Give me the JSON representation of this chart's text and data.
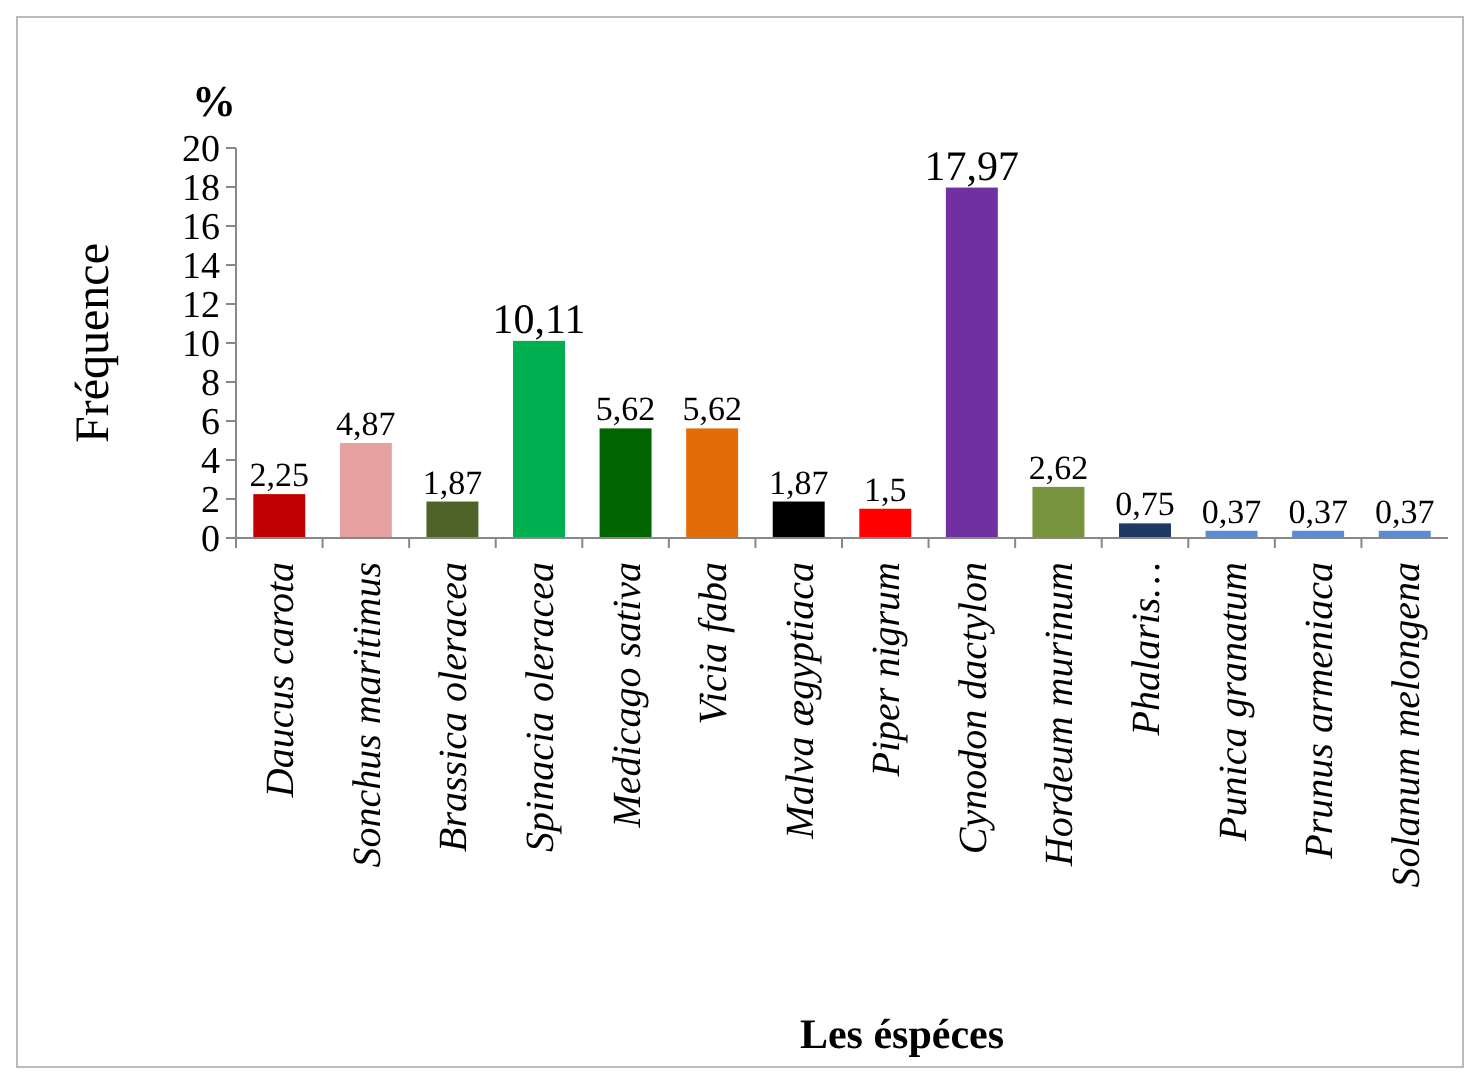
{
  "chart_data": {
    "type": "bar",
    "xlabel": "Les éspéces",
    "ylabel": "Fréquence",
    "annotations": [
      "%"
    ],
    "categories": [
      "Daucus carota",
      "Sonchus maritimus",
      "Brassica oleracea",
      "Spinacia oleracea",
      "Medicago sativa",
      "Vicia faba",
      "Malva ægyptiaca",
      "Piper nigrum",
      "Cynodon dactylon",
      "Hordeum murinum",
      "Phalaris…",
      "Punica granatum",
      "Prunus armeniaca",
      "Solanum melongena"
    ],
    "values": [
      2.25,
      4.87,
      1.87,
      10.11,
      5.62,
      5.62,
      1.87,
      1.5,
      17.97,
      2.62,
      0.75,
      0.37,
      0.37,
      0.37
    ],
    "value_labels": [
      "2,25",
      "4,87",
      "1,87",
      "10,11",
      "5,62",
      "5,62",
      "1,87",
      "1,5",
      "17,97",
      "2,62",
      "0,75",
      "0,37",
      "0,37",
      "0,37"
    ],
    "colors": [
      "#c00000",
      "#e6a0a0",
      "#4f6228",
      "#00b050",
      "#006400",
      "#e36c09",
      "#000000",
      "#ff0000",
      "#7030a0",
      "#77933c",
      "#1f3864",
      "#5b8bd0",
      "#5b8bd0",
      "#5b8bd0"
    ],
    "ylim": [
      0,
      20
    ],
    "yticks": [
      0,
      2,
      4,
      6,
      8,
      10,
      12,
      14,
      16,
      18,
      20
    ],
    "grid": false
  }
}
